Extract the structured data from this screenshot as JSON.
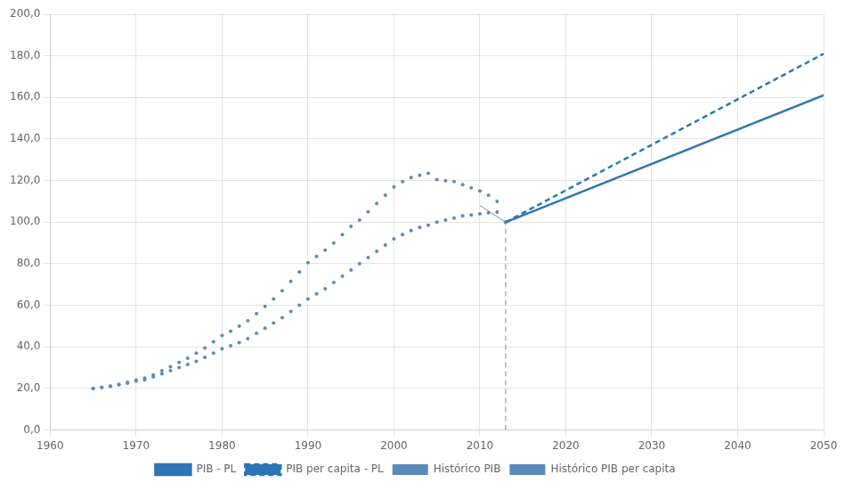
{
  "chart_data": {
    "type": "scatter",
    "xlim": [
      1960,
      2050
    ],
    "ylim": [
      0.0,
      200.0
    ],
    "xticks": [
      1960,
      1970,
      1980,
      1990,
      2000,
      2010,
      2020,
      2030,
      2040,
      2050
    ],
    "yticks": [
      {
        "value": 0.0,
        "label": "0,0"
      },
      {
        "value": 20.0,
        "label": "20,0"
      },
      {
        "value": 40.0,
        "label": "40,0"
      },
      {
        "value": 60.0,
        "label": "60,0"
      },
      {
        "value": 80.0,
        "label": "80,0"
      },
      {
        "value": 100.0,
        "label": "100,0"
      },
      {
        "value": 120.0,
        "label": "120,0"
      },
      {
        "value": 140.0,
        "label": "140,0"
      },
      {
        "value": 160.0,
        "label": "160,0"
      },
      {
        "value": 180.0,
        "label": "180,0"
      },
      {
        "value": 200.0,
        "label": "200,0"
      }
    ],
    "grid": true,
    "legend": "bottom",
    "series": [
      {
        "name": "Histórico PIB",
        "color": "#5a8ab8",
        "marker": "dot",
        "line_style": "none",
        "x": [
          1965,
          1966,
          1967,
          1968,
          1969,
          1970,
          1971,
          1972,
          1973,
          1974,
          1975,
          1976,
          1977,
          1978,
          1979,
          1980,
          1981,
          1982,
          1983,
          1984,
          1985,
          1986,
          1987,
          1988,
          1989,
          1990,
          1991,
          1992,
          1993,
          1994,
          1995,
          1996,
          1997,
          1998,
          1999,
          2000,
          2001,
          2002,
          2003,
          2004,
          2005,
          2006,
          2007,
          2008,
          2009,
          2010,
          2011,
          2012,
          2013
        ],
        "values": [
          20.0,
          20.5,
          21.0,
          21.8,
          22.5,
          23.5,
          24.2,
          25.5,
          27.0,
          28.5,
          30.0,
          31.5,
          33.0,
          35.0,
          37.0,
          39.0,
          40.5,
          42.0,
          44.0,
          46.5,
          49.0,
          51.5,
          54.0,
          57.0,
          60.0,
          63.0,
          65.5,
          68.0,
          71.0,
          74.0,
          77.0,
          80.0,
          83.0,
          86.0,
          89.0,
          92.0,
          94.0,
          96.0,
          97.5,
          98.5,
          100.0,
          101.0,
          102.0,
          103.0,
          103.5,
          104.0,
          104.5,
          104.8,
          100.0
        ]
      },
      {
        "name": "PIB - PL",
        "color": "#2e75b6",
        "marker": "none",
        "line_style": "solid",
        "x": [
          2013,
          2050
        ],
        "values": [
          100.0,
          161.0
        ]
      },
      {
        "name": "Histórico PIB per capita",
        "color": "#5a8ab8",
        "marker": "dot",
        "line_style": "none",
        "x": [
          1965,
          1966,
          1967,
          1968,
          1969,
          1970,
          1971,
          1972,
          1973,
          1974,
          1975,
          1976,
          1977,
          1978,
          1979,
          1980,
          1981,
          1982,
          1983,
          1984,
          1985,
          1986,
          1987,
          1988,
          1989,
          1990,
          1991,
          1992,
          1993,
          1994,
          1995,
          1996,
          1997,
          1998,
          1999,
          2000,
          2001,
          2002,
          2003,
          2004,
          2005,
          2006,
          2007,
          2008,
          2009,
          2010,
          2011,
          2012,
          2013
        ],
        "values": [
          20.0,
          20.5,
          21.2,
          22.0,
          23.0,
          24.0,
          25.0,
          26.5,
          28.5,
          30.5,
          32.5,
          34.5,
          37.0,
          39.5,
          42.5,
          45.5,
          47.5,
          50.0,
          52.5,
          56.0,
          59.5,
          63.0,
          67.0,
          71.5,
          76.0,
          80.5,
          83.5,
          86.5,
          90.0,
          94.0,
          98.0,
          101.0,
          105.0,
          109.0,
          113.0,
          117.0,
          119.5,
          121.5,
          122.5,
          123.5,
          120.5,
          120.0,
          119.5,
          118.0,
          116.5,
          115.0,
          113.0,
          110.0,
          100.0
        ]
      },
      {
        "name": "PIB per capita - PL",
        "color": "#2e75b6",
        "marker": "none",
        "line_style": "dashed",
        "x": [
          2013,
          2050
        ],
        "values": [
          100.0,
          181.0
        ]
      },
      {
        "color": "#888888",
        "marker": "none",
        "line_style": "dashed",
        "x": [
          2013,
          2013
        ],
        "values": [
          0,
          100
        ]
      },
      {
        "color": "#888888",
        "marker": "none",
        "line_style": "solid",
        "x": [
          2010,
          2013
        ],
        "values": [
          108,
          100
        ]
      }
    ]
  }
}
